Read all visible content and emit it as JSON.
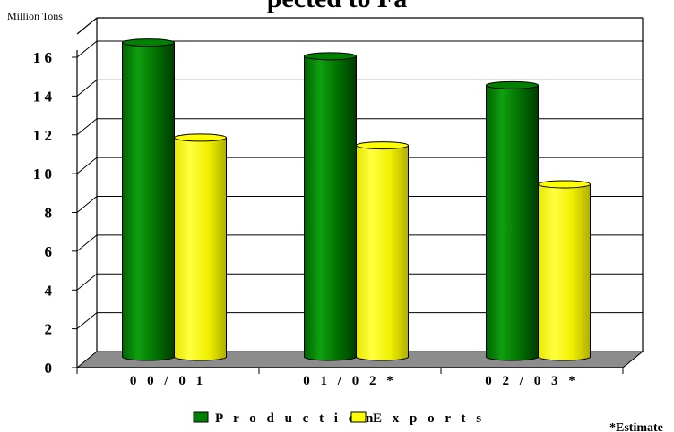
{
  "chart_data": {
    "type": "bar",
    "title": "pected to Fa",
    "ylabel": "Million Tons",
    "categories": [
      "0 0 / 0 1",
      "0 1 / 0 2 *",
      "0 2 / 0 3 *"
    ],
    "series": [
      {
        "name": "P r o d u c t i o n",
        "values": [
          16.2,
          15.5,
          14.0
        ],
        "color": "#008000"
      },
      {
        "name": "E x p o r t s",
        "values": [
          11.3,
          10.9,
          8.9
        ],
        "color": "#ffff00"
      }
    ],
    "ylim": [
      0,
      16
    ],
    "yticks": [
      {
        "value": 0,
        "label": "0"
      },
      {
        "value": 2,
        "label": "2"
      },
      {
        "value": 4,
        "label": "4"
      },
      {
        "value": 6,
        "label": "6"
      },
      {
        "value": 8,
        "label": "8"
      },
      {
        "value": 10,
        "label": "1 0"
      },
      {
        "value": 12,
        "label": "1 2"
      },
      {
        "value": 14,
        "label": "1 4"
      },
      {
        "value": 16,
        "label": "1 6"
      }
    ],
    "grid": true,
    "legend_position": "bottom",
    "footnote": "*Estimate"
  }
}
